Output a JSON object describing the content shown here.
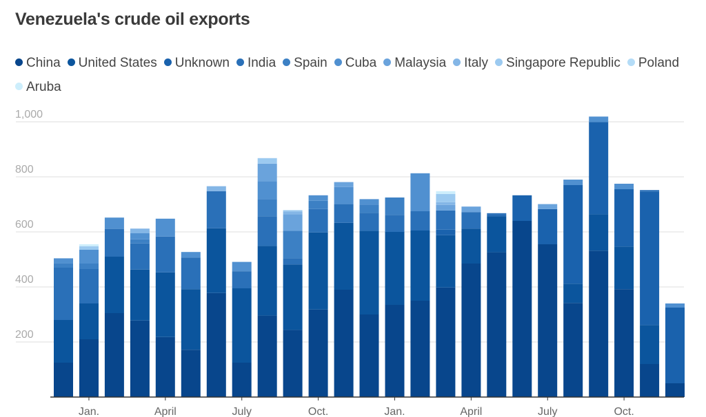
{
  "header": {
    "title": "Venezuela's crude oil exports"
  },
  "chart_data": {
    "type": "bar",
    "stacked": true,
    "title": "Venezuela's crude oil exports",
    "xlabel": "",
    "ylabel": "",
    "ylim": [
      0,
      1000
    ],
    "yticks": [
      200,
      400,
      600,
      800,
      1000
    ],
    "ytick_labels": [
      "200",
      "400",
      "600",
      "800",
      "1,000"
    ],
    "grid": true,
    "legend_position": "top",
    "x_tick_labels": [
      {
        "label": "Jan.",
        "index": 1
      },
      {
        "label": "April",
        "index": 4
      },
      {
        "label": "July",
        "index": 7
      },
      {
        "label": "Oct.",
        "index": 10
      },
      {
        "label": "Jan.",
        "index": 13
      },
      {
        "label": "April",
        "index": 16
      },
      {
        "label": "July",
        "index": 19
      },
      {
        "label": "Oct.",
        "index": 22
      }
    ],
    "categories": [
      "1",
      "2",
      "3",
      "4",
      "5",
      "6",
      "7",
      "8",
      "9",
      "10",
      "11",
      "12",
      "13",
      "14",
      "15",
      "16",
      "17",
      "18",
      "19",
      "20",
      "21",
      "22",
      "23",
      "24",
      "25"
    ],
    "series": [
      {
        "name": "China",
        "color": "#08468c",
        "values": [
          125,
          210,
          305,
          278,
          218,
          172,
          378,
          125,
          296,
          244,
          318,
          390,
          300,
          335,
          350,
          398,
          485,
          526,
          640,
          555,
          342,
          532,
          392,
          120,
          50
        ]
      },
      {
        "name": "United States",
        "color": "#0b559d",
        "values": [
          155,
          130,
          205,
          185,
          235,
          220,
          235,
          270,
          253,
          238,
          280,
          243,
          304,
          265,
          255,
          190,
          127,
          130,
          0,
          0,
          70,
          132,
          155,
          142,
          0
        ]
      },
      {
        "name": "Unknown",
        "color": "#1a62ad",
        "values": [
          0,
          0,
          0,
          0,
          0,
          0,
          0,
          0,
          0,
          0,
          0,
          0,
          0,
          0,
          0,
          20,
          0,
          5,
          93,
          128,
          358,
          335,
          208,
          485,
          275
        ]
      },
      {
        "name": "India",
        "color": "#2a70b8",
        "values": [
          190,
          125,
          100,
          95,
          130,
          115,
          135,
          62,
          108,
          22,
          85,
          68,
          65,
          62,
          70,
          70,
          60,
          7,
          0,
          0,
          0,
          0,
          0,
          5,
          0
        ]
      },
      {
        "name": "Spain",
        "color": "#3c80c4",
        "values": [
          16,
          20,
          2,
          15,
          0,
          0,
          0,
          2,
          62,
          100,
          30,
          0,
          30,
          63,
          0,
          0,
          0,
          0,
          0,
          0,
          0,
          0,
          0,
          0,
          0
        ]
      },
      {
        "name": "Cuba",
        "color": "#5090d0",
        "values": [
          18,
          50,
          40,
          22,
          65,
          20,
          0,
          32,
          65,
          0,
          20,
          62,
          20,
          0,
          138,
          0,
          0,
          0,
          0,
          0,
          20,
          20,
          20,
          0,
          15
        ]
      },
      {
        "name": "Malaysia",
        "color": "#6aa3dc",
        "values": [
          0,
          0,
          0,
          0,
          0,
          0,
          0,
          0,
          64,
          60,
          0,
          18,
          0,
          0,
          0,
          20,
          20,
          0,
          0,
          18,
          0,
          0,
          0,
          0,
          0
        ]
      },
      {
        "name": "Italy",
        "color": "#84b6e6",
        "values": [
          0,
          0,
          0,
          17,
          0,
          0,
          18,
          0,
          0,
          10,
          0,
          0,
          0,
          0,
          0,
          10,
          0,
          0,
          0,
          0,
          0,
          0,
          0,
          0,
          0
        ]
      },
      {
        "name": "Singapore Republic",
        "color": "#9ccaf0",
        "values": [
          0,
          13,
          0,
          0,
          0,
          0,
          0,
          0,
          20,
          5,
          0,
          0,
          0,
          0,
          0,
          30,
          0,
          0,
          0,
          0,
          0,
          0,
          0,
          0,
          0
        ]
      },
      {
        "name": "Poland",
        "color": "#b4dcf7",
        "values": [
          0,
          0,
          0,
          0,
          0,
          0,
          0,
          0,
          0,
          0,
          0,
          0,
          0,
          0,
          0,
          0,
          0,
          0,
          0,
          0,
          0,
          0,
          0,
          0,
          0
        ]
      },
      {
        "name": "Aruba",
        "color": "#cdeefc",
        "values": [
          0,
          7,
          0,
          0,
          0,
          0,
          0,
          0,
          0,
          0,
          0,
          0,
          0,
          0,
          0,
          10,
          0,
          0,
          0,
          0,
          0,
          0,
          0,
          0,
          0
        ]
      }
    ]
  }
}
